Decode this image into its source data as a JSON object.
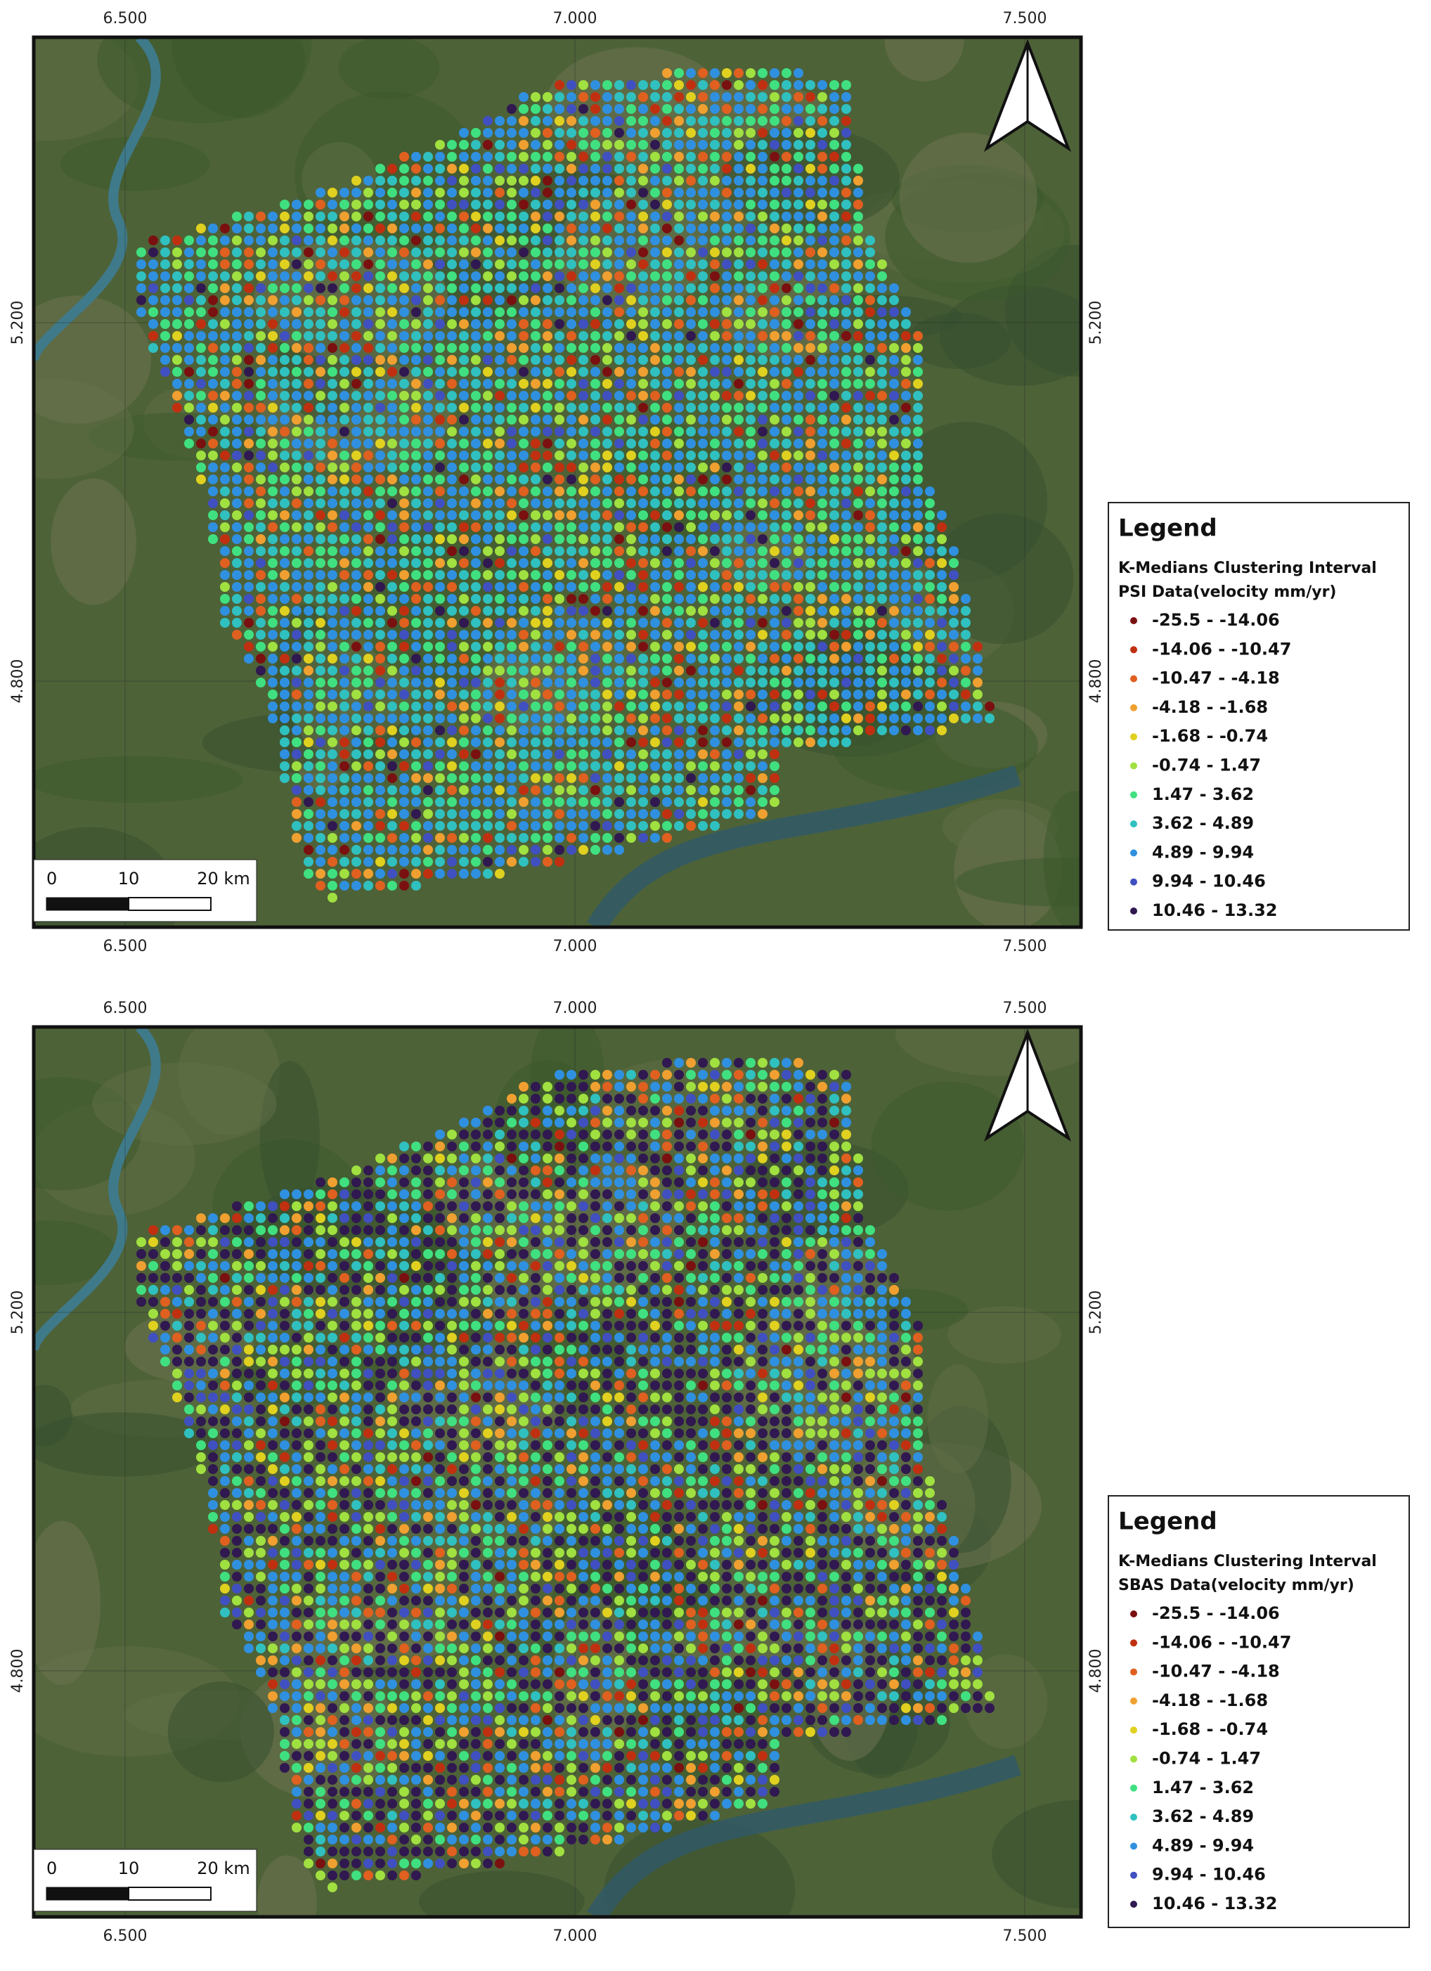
{
  "maps": [
    {
      "ticks": {
        "top": [
          "6.500",
          "7.000",
          "7.500"
        ],
        "bottom": [
          "6.500",
          "7.000",
          "7.500"
        ],
        "left": [
          "5.200",
          "4.800"
        ],
        "right": [
          "5.200",
          "4.800"
        ]
      },
      "scalebar": [
        "0",
        "10",
        "20 km"
      ],
      "legend": {
        "title": "Legend",
        "subtitle": [
          "K-Medians Clustering Interval",
          "PSI Data(velocity mm/yr)"
        ],
        "items": [
          {
            "label": "-25.5 - -14.06",
            "color": "#7a1010"
          },
          {
            "label": "-14.06 - -10.47",
            "color": "#c03010"
          },
          {
            "label": "-10.47 - -4.18",
            "color": "#e06020"
          },
          {
            "label": "-4.18 - -1.68",
            "color": "#f0a030"
          },
          {
            "label": "-1.68 - -0.74",
            "color": "#e0d020"
          },
          {
            "label": "-0.74 - 1.47",
            "color": "#a0e040"
          },
          {
            "label": "1.47 - 3.62",
            "color": "#40e080"
          },
          {
            "label": "3.62 - 4.89",
            "color": "#30c0c0"
          },
          {
            "label": "4.89 - 9.94",
            "color": "#3090e0"
          },
          {
            "label": "9.94 - 10.46",
            "color": "#4050c0"
          },
          {
            "label": "10.46 - 13.32",
            "color": "#301850"
          }
        ]
      }
    },
    {
      "ticks": {
        "top": [
          "6.500",
          "7.000",
          "7.500"
        ],
        "bottom": [
          "6.500",
          "7.000",
          "7.500"
        ],
        "left": [
          "5.200",
          "4.800"
        ],
        "right": [
          "5.200",
          "4.800"
        ]
      },
      "scalebar": [
        "0",
        "10",
        "20 km"
      ],
      "legend": {
        "title": "Legend",
        "subtitle": [
          "K-Medians Clustering Interval",
          "SBAS Data(velocity mm/yr)"
        ],
        "items": [
          {
            "label": "-25.5 - -14.06",
            "color": "#7a1010"
          },
          {
            "label": "-14.06 - -10.47",
            "color": "#c03010"
          },
          {
            "label": "-10.47 - -4.18",
            "color": "#e06020"
          },
          {
            "label": "-4.18 - -1.68",
            "color": "#f0a030"
          },
          {
            "label": "-1.68 - -0.74",
            "color": "#e0d020"
          },
          {
            "label": "-0.74 - 1.47",
            "color": "#a0e040"
          },
          {
            "label": "1.47 - 3.62",
            "color": "#40e080"
          },
          {
            "label": "3.62 - 4.89",
            "color": "#30c0c0"
          },
          {
            "label": "4.89 - 9.94",
            "color": "#3090e0"
          },
          {
            "label": "9.94 - 10.46",
            "color": "#4050c0"
          },
          {
            "label": "10.46 - 13.32",
            "color": "#301850"
          }
        ]
      }
    }
  ]
}
